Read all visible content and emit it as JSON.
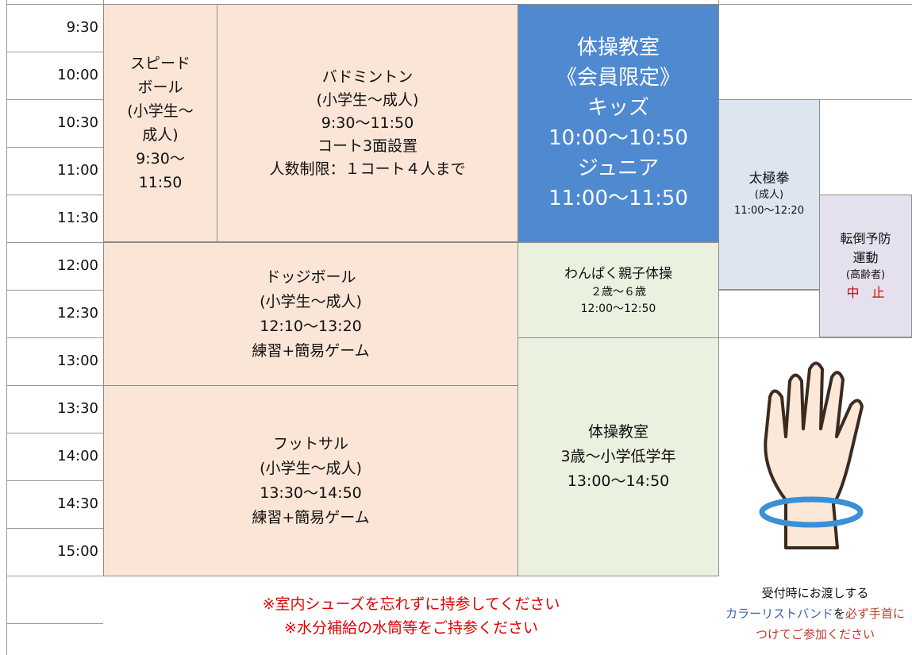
{
  "times": [
    "9:30",
    "10:00",
    "10:30",
    "11:00",
    "11:30",
    "12:00",
    "12:30",
    "13:00",
    "13:30",
    "14:00",
    "14:30",
    "15:00"
  ],
  "blocks": [
    {
      "lines": [
        "スピード",
        "ボール",
        "(小学生～",
        "成人)",
        "9:30～",
        "11:50"
      ]
    },
    {
      "lines": [
        "バドミントン",
        "(小学生～成人)",
        "9:30～11:50",
        "コート3面設置",
        "人数制限：１コート４人まで"
      ]
    },
    {
      "lines": [
        "体操教室",
        "《会員限定》",
        "キッズ",
        "10:00～10:50",
        "ジュニア",
        "11:00～11:50"
      ]
    },
    {
      "lines": [
        "太極拳",
        "(成人)",
        "11:00～12:20"
      ]
    },
    {
      "lines": [
        "転倒予防",
        "運動",
        "(高齢者)",
        "中　止"
      ]
    },
    {
      "lines": [
        "ドッジボール",
        "(小学生～成人)",
        "12:10～13:20",
        "練習+簡易ゲーム"
      ]
    },
    {
      "lines": [
        "わんぱく親子体操",
        "２歳～６歳",
        "12:00～12:50"
      ]
    },
    {
      "lines": [
        "フットサル",
        "(小学生～成人)",
        "13:30～14:50",
        "練習+簡易ゲーム"
      ]
    },
    {
      "lines": [
        "体操教室",
        "3歳～小学低学年",
        "13:00～14:50"
      ]
    },
    {
      "lines": [
        "※室内シューズを忘れずに持参してください",
        "※水分補給の水筒等をご持参ください"
      ]
    }
  ],
  "wristband": {
    "line1": "受付時にお渡しする",
    "line2": [
      "カラーリストバンド",
      "を",
      "必ず手首に"
    ],
    "line3": "つけてご参加ください"
  }
}
